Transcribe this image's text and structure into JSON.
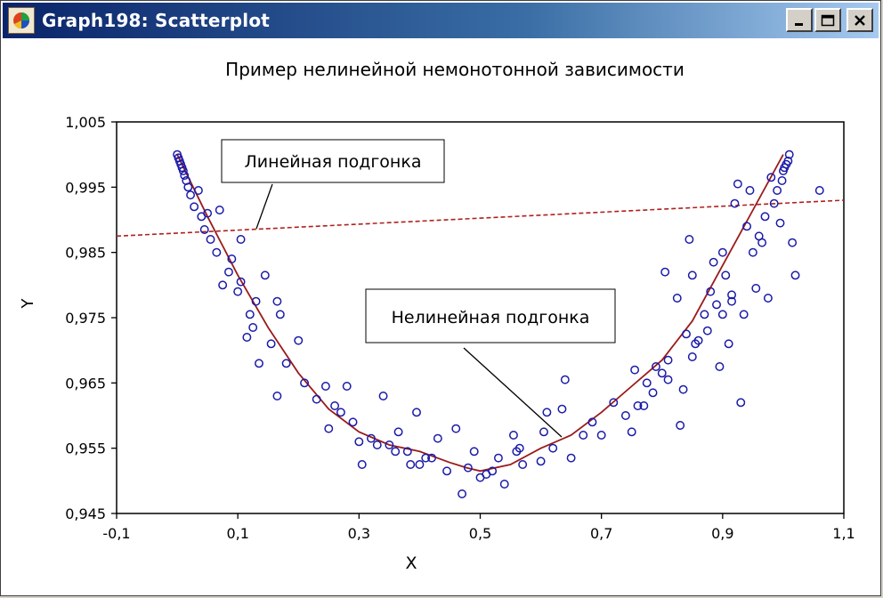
{
  "window": {
    "title": "Graph198: Scatterplot",
    "buttons": [
      "minimize",
      "maximize",
      "close"
    ]
  },
  "colors": {
    "points": "#1a1aa8",
    "nonlinear_fit": "#9b1b1b",
    "linear_fit": "#b02020",
    "title_bar": "#0a246a"
  },
  "chart_data": {
    "type": "scatter",
    "title": "Пример нелинейной немонотонной зависимости",
    "xlabel": "X",
    "ylabel": "Y",
    "xlim": [
      -0.1,
      1.1
    ],
    "ylim": [
      0.945,
      1.005
    ],
    "xticks": [
      "-0,1",
      "0,1",
      "0,3",
      "0,5",
      "0,7",
      "0,9",
      "1,1"
    ],
    "xtick_values": [
      -0.1,
      0.1,
      0.3,
      0.5,
      0.7,
      0.9,
      1.1
    ],
    "yticks": [
      "0,945",
      "0,955",
      "0,965",
      "0,975",
      "0,985",
      "0,995",
      "1,005"
    ],
    "ytick_values": [
      0.945,
      0.955,
      0.965,
      0.975,
      0.985,
      0.995,
      1.005
    ],
    "grid": false,
    "annotations": [
      {
        "text": "Линейная подгонка",
        "target": "linear_fit"
      },
      {
        "text": "Нелинейная подгонка",
        "target": "nonlinear_fit"
      }
    ],
    "series": [
      {
        "kind": "points",
        "points": [
          [
            0.0,
            1.0
          ],
          [
            0.002,
            0.9995
          ],
          [
            0.004,
            0.999
          ],
          [
            0.006,
            0.9985
          ],
          [
            0.008,
            0.998
          ],
          [
            0.01,
            0.9975
          ],
          [
            0.012,
            0.9968
          ],
          [
            0.015,
            0.996
          ],
          [
            0.018,
            0.995
          ],
          [
            0.022,
            0.9938
          ],
          [
            0.028,
            0.992
          ],
          [
            0.035,
            0.9945
          ],
          [
            0.04,
            0.9905
          ],
          [
            0.045,
            0.9885
          ],
          [
            0.05,
            0.991
          ],
          [
            0.055,
            0.987
          ],
          [
            0.065,
            0.985
          ],
          [
            0.07,
            0.9915
          ],
          [
            0.075,
            0.98
          ],
          [
            0.085,
            0.982
          ],
          [
            0.09,
            0.984
          ],
          [
            0.1,
            0.979
          ],
          [
            0.105,
            0.987
          ],
          [
            0.105,
            0.9805
          ],
          [
            0.115,
            0.972
          ],
          [
            0.12,
            0.9755
          ],
          [
            0.125,
            0.9735
          ],
          [
            0.13,
            0.9775
          ],
          [
            0.135,
            0.968
          ],
          [
            0.145,
            0.9815
          ],
          [
            0.155,
            0.971
          ],
          [
            0.165,
            0.9775
          ],
          [
            0.165,
            0.963
          ],
          [
            0.17,
            0.9755
          ],
          [
            0.18,
            0.968
          ],
          [
            0.2,
            0.9715
          ],
          [
            0.21,
            0.965
          ],
          [
            0.23,
            0.9625
          ],
          [
            0.245,
            0.9645
          ],
          [
            0.25,
            0.958
          ],
          [
            0.26,
            0.9615
          ],
          [
            0.27,
            0.9605
          ],
          [
            0.28,
            0.9645
          ],
          [
            0.29,
            0.959
          ],
          [
            0.3,
            0.956
          ],
          [
            0.305,
            0.9525
          ],
          [
            0.32,
            0.9565
          ],
          [
            0.33,
            0.9555
          ],
          [
            0.34,
            0.963
          ],
          [
            0.35,
            0.9555
          ],
          [
            0.36,
            0.9545
          ],
          [
            0.365,
            0.9575
          ],
          [
            0.38,
            0.9545
          ],
          [
            0.385,
            0.9525
          ],
          [
            0.395,
            0.9605
          ],
          [
            0.4,
            0.9525
          ],
          [
            0.41,
            0.9535
          ],
          [
            0.42,
            0.9535
          ],
          [
            0.43,
            0.9565
          ],
          [
            0.445,
            0.9515
          ],
          [
            0.46,
            0.958
          ],
          [
            0.47,
            0.948
          ],
          [
            0.48,
            0.952
          ],
          [
            0.49,
            0.9545
          ],
          [
            0.5,
            0.9505
          ],
          [
            0.51,
            0.951
          ],
          [
            0.52,
            0.9515
          ],
          [
            0.53,
            0.9535
          ],
          [
            0.54,
            0.9495
          ],
          [
            0.555,
            0.957
          ],
          [
            0.56,
            0.9545
          ],
          [
            0.565,
            0.955
          ],
          [
            0.57,
            0.9525
          ],
          [
            0.6,
            0.953
          ],
          [
            0.605,
            0.9575
          ],
          [
            0.61,
            0.9605
          ],
          [
            0.62,
            0.955
          ],
          [
            0.635,
            0.961
          ],
          [
            0.64,
            0.9655
          ],
          [
            0.65,
            0.9535
          ],
          [
            0.67,
            0.957
          ],
          [
            0.685,
            0.959
          ],
          [
            0.7,
            0.957
          ],
          [
            0.72,
            0.962
          ],
          [
            0.74,
            0.96
          ],
          [
            0.75,
            0.9575
          ],
          [
            0.755,
            0.967
          ],
          [
            0.76,
            0.9615
          ],
          [
            0.77,
            0.9615
          ],
          [
            0.775,
            0.965
          ],
          [
            0.785,
            0.9635
          ],
          [
            0.79,
            0.9675
          ],
          [
            0.8,
            0.9665
          ],
          [
            0.805,
            0.982
          ],
          [
            0.81,
            0.9655
          ],
          [
            0.81,
            0.9685
          ],
          [
            0.825,
            0.978
          ],
          [
            0.83,
            0.9585
          ],
          [
            0.835,
            0.964
          ],
          [
            0.84,
            0.9725
          ],
          [
            0.845,
            0.987
          ],
          [
            0.85,
            0.969
          ],
          [
            0.85,
            0.9815
          ],
          [
            0.855,
            0.971
          ],
          [
            0.86,
            0.9715
          ],
          [
            0.87,
            0.9755
          ],
          [
            0.875,
            0.973
          ],
          [
            0.88,
            0.979
          ],
          [
            0.885,
            0.9835
          ],
          [
            0.89,
            0.977
          ],
          [
            0.895,
            0.9675
          ],
          [
            0.9,
            0.9755
          ],
          [
            0.9,
            0.985
          ],
          [
            0.905,
            0.9815
          ],
          [
            0.91,
            0.971
          ],
          [
            0.915,
            0.9775
          ],
          [
            0.915,
            0.9785
          ],
          [
            0.92,
            0.9925
          ],
          [
            0.925,
            0.9955
          ],
          [
            0.93,
            0.962
          ],
          [
            0.935,
            0.9755
          ],
          [
            0.94,
            0.989
          ],
          [
            0.945,
            0.9945
          ],
          [
            0.95,
            0.985
          ],
          [
            0.955,
            0.9795
          ],
          [
            0.96,
            0.9875
          ],
          [
            0.965,
            0.9865
          ],
          [
            0.97,
            0.9905
          ],
          [
            0.975,
            0.978
          ],
          [
            0.98,
            0.9965
          ],
          [
            0.985,
            0.9925
          ],
          [
            0.99,
            0.9945
          ],
          [
            0.995,
            0.9895
          ],
          [
            0.998,
            0.996
          ],
          [
            1.0,
            0.9975
          ],
          [
            1.002,
            0.998
          ],
          [
            1.005,
            0.9985
          ],
          [
            1.008,
            0.999
          ],
          [
            1.01,
            1.0
          ],
          [
            1.015,
            0.9865
          ],
          [
            1.02,
            0.9815
          ],
          [
            1.06,
            0.9945
          ]
        ]
      },
      {
        "kind": "nonlinear_fit",
        "points": [
          [
            0.0,
            1.0
          ],
          [
            0.05,
            0.9905
          ],
          [
            0.1,
            0.9815
          ],
          [
            0.15,
            0.9735
          ],
          [
            0.2,
            0.9665
          ],
          [
            0.25,
            0.961
          ],
          [
            0.3,
            0.9575
          ],
          [
            0.35,
            0.9555
          ],
          [
            0.4,
            0.9545
          ],
          [
            0.45,
            0.9528
          ],
          [
            0.478,
            0.952
          ],
          [
            0.5,
            0.9515
          ],
          [
            0.55,
            0.9525
          ],
          [
            0.6,
            0.955
          ],
          [
            0.65,
            0.957
          ],
          [
            0.7,
            0.9605
          ],
          [
            0.75,
            0.9645
          ],
          [
            0.8,
            0.9685
          ],
          [
            0.85,
            0.9745
          ],
          [
            0.9,
            0.983
          ],
          [
            0.95,
            0.9915
          ],
          [
            1.0,
            1.0
          ]
        ]
      },
      {
        "kind": "linear_fit",
        "points": [
          [
            -0.1,
            0.9875
          ],
          [
            1.1,
            0.993
          ]
        ]
      }
    ]
  }
}
